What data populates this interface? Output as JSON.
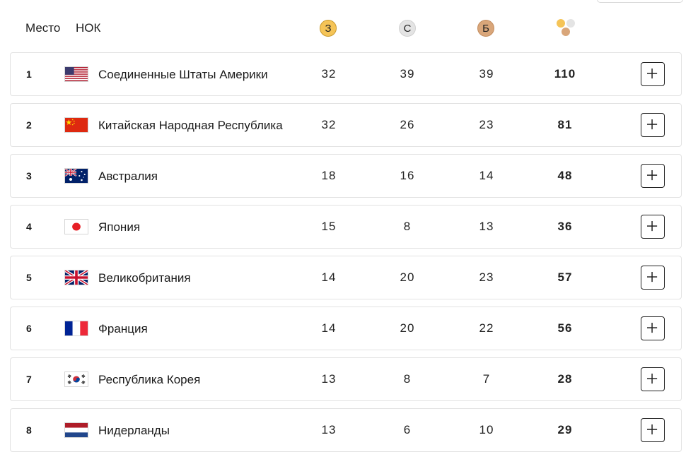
{
  "header": {
    "rank_label": "Место",
    "noc_label": "НОК",
    "gold_label": "З",
    "silver_label": "С",
    "bronze_label": "Б",
    "total_icon": "medals-total-icon"
  },
  "colors": {
    "gold": "#f5c457",
    "silver": "#e4e4e4",
    "bronze": "#d9a67a",
    "border": "#e2e2e2"
  },
  "rows": [
    {
      "rank": "1",
      "country": "Соединенные Штаты Америки",
      "flag": "usa-flag-icon",
      "gold": "32",
      "silver": "39",
      "bronze": "39",
      "total": "110"
    },
    {
      "rank": "2",
      "country": "Китайская Народная Республика",
      "flag": "china-flag-icon",
      "gold": "32",
      "silver": "26",
      "bronze": "23",
      "total": "81"
    },
    {
      "rank": "3",
      "country": "Австралия",
      "flag": "australia-flag-icon",
      "gold": "18",
      "silver": "16",
      "bronze": "14",
      "total": "48"
    },
    {
      "rank": "4",
      "country": "Япония",
      "flag": "japan-flag-icon",
      "gold": "15",
      "silver": "8",
      "bronze": "13",
      "total": "36"
    },
    {
      "rank": "5",
      "country": "Великобритания",
      "flag": "uk-flag-icon",
      "gold": "14",
      "silver": "20",
      "bronze": "23",
      "total": "57"
    },
    {
      "rank": "6",
      "country": "Франция",
      "flag": "france-flag-icon",
      "gold": "14",
      "silver": "20",
      "bronze": "22",
      "total": "56"
    },
    {
      "rank": "7",
      "country": "Республика Корея",
      "flag": "korea-flag-icon",
      "gold": "13",
      "silver": "8",
      "bronze": "7",
      "total": "28"
    },
    {
      "rank": "8",
      "country": "Нидерланды",
      "flag": "netherlands-flag-icon",
      "gold": "13",
      "silver": "6",
      "bronze": "10",
      "total": "29"
    }
  ],
  "row_action": "plus-icon"
}
